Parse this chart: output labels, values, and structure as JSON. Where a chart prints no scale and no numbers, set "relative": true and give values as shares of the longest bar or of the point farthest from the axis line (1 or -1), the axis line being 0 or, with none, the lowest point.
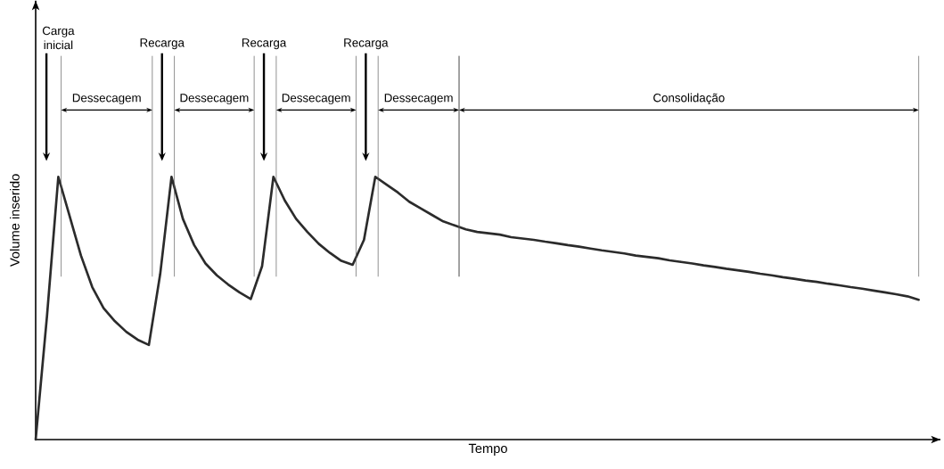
{
  "chart_data": {
    "type": "line",
    "relative": true,
    "xlabel": "Tempo",
    "ylabel": "Volume inserido",
    "categories": [
      null,
      null,
      null,
      null,
      null,
      null,
      null,
      null,
      null,
      null,
      null,
      null,
      null,
      null,
      null,
      null,
      null,
      null,
      null,
      null,
      null,
      null,
      null,
      null,
      null,
      null,
      null,
      null,
      null,
      null,
      null,
      null,
      null,
      null,
      null,
      null,
      null,
      null,
      null,
      null,
      null,
      null,
      null,
      null,
      null,
      null,
      null,
      null,
      null,
      null,
      null,
      null,
      null,
      null,
      null,
      null,
      null,
      null,
      null,
      null,
      null,
      null,
      null,
      null,
      null,
      null,
      null,
      null,
      null,
      null,
      null,
      null,
      null,
      null,
      null,
      null,
      null,
      null,
      null
    ],
    "series": [
      {
        "color": "#2b2b2b",
        "values": [
          0,
          0.47,
          1,
          0.85,
          0.7,
          0.58,
          0.5,
          0.45,
          0.41,
          0.38,
          0.36,
          0.63,
          1,
          0.84,
          0.74,
          0.67,
          0.625,
          0.59,
          0.56,
          0.535,
          0.66,
          1,
          0.91,
          0.84,
          0.79,
          0.745,
          0.71,
          0.68,
          0.665,
          0.76,
          1,
          0.97,
          0.94,
          0.905,
          0.88,
          0.855,
          0.83,
          0.815,
          0.8,
          0.79,
          0.785,
          0.78,
          0.77,
          0.765,
          0.76,
          0.753,
          0.747,
          0.74,
          0.734,
          0.727,
          0.72,
          0.714,
          0.708,
          0.7,
          0.695,
          0.69,
          0.682,
          0.676,
          0.67,
          0.663,
          0.657,
          0.65,
          0.644,
          0.638,
          0.631,
          0.625,
          0.618,
          0.612,
          0.605,
          0.6,
          0.593,
          0.587,
          0.58,
          0.574,
          0.567,
          0.56,
          0.553,
          0.545,
          0.532
        ]
      }
    ],
    "annotations": [
      "Carga inicial",
      "Dessecagem",
      "Recarga",
      "Dessecagem",
      "Recarga",
      "Dessecagem",
      "Recarga",
      "Dessecagem",
      "Consolidação"
    ]
  }
}
